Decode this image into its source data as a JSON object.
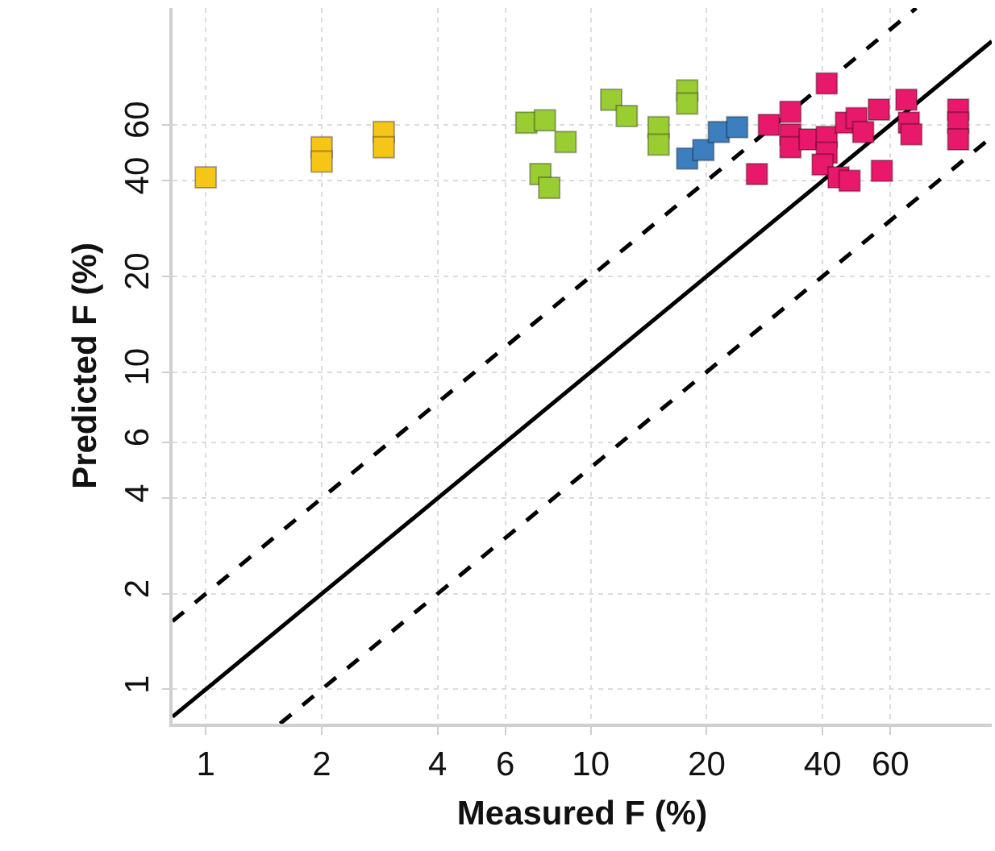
{
  "chart_data": {
    "type": "scatter",
    "xlabel": "Measured F (%)",
    "ylabel": "Predicted F (%)",
    "log": "xy",
    "grid": true,
    "marker": "square",
    "xlim": [
      0.82,
      110
    ],
    "ylim": [
      0.78,
      140
    ],
    "xticks": [
      1,
      2,
      4,
      6,
      10,
      20,
      40,
      60
    ],
    "yticks": [
      1,
      2,
      4,
      6,
      10,
      20,
      40,
      60
    ],
    "series": [
      {
        "type": "line",
        "color": "#000000",
        "line_style": "solid",
        "marker": "none",
        "x": [
          0.82,
          110
        ],
        "values": [
          0.82,
          110
        ]
      },
      {
        "type": "line",
        "color": "#000000",
        "line_style": "dashed",
        "marker": "none",
        "x": [
          0.82,
          70
        ],
        "values": [
          1.64,
          140
        ]
      },
      {
        "type": "line",
        "color": "#000000",
        "line_style": "dashed",
        "marker": "none",
        "x": [
          1.56,
          110
        ],
        "values": [
          0.78,
          55
        ]
      },
      {
        "color": "#f5c518",
        "x": [
          1.0,
          2.0,
          2.0,
          2.9,
          2.9
        ],
        "values": [
          41,
          51,
          46,
          57,
          51
        ]
      },
      {
        "color": "#9acd32",
        "x": [
          6.8,
          7.6,
          8.6,
          7.4,
          7.8,
          11.3,
          12.4,
          15,
          15,
          17.8,
          17.8
        ],
        "values": [
          61,
          62,
          53,
          42,
          38,
          72,
          64,
          59,
          52,
          77,
          70
        ]
      },
      {
        "color": "#3d7ebf",
        "x": [
          17.8,
          19.6,
          21.5,
          24
        ],
        "values": [
          47,
          50,
          57,
          59
        ]
      },
      {
        "color": "#e8186a",
        "x": [
          27,
          29,
          33,
          33,
          33,
          37,
          41,
          41,
          41,
          40,
          44,
          47,
          46,
          49,
          51,
          56,
          57,
          66,
          67,
          68,
          90,
          90,
          90
        ],
        "values": [
          42,
          60,
          66,
          56,
          51,
          54,
          81,
          55,
          49,
          45,
          41,
          40,
          61,
          63,
          57,
          67,
          43,
          72,
          61,
          56,
          67,
          61,
          54
        ]
      }
    ]
  }
}
